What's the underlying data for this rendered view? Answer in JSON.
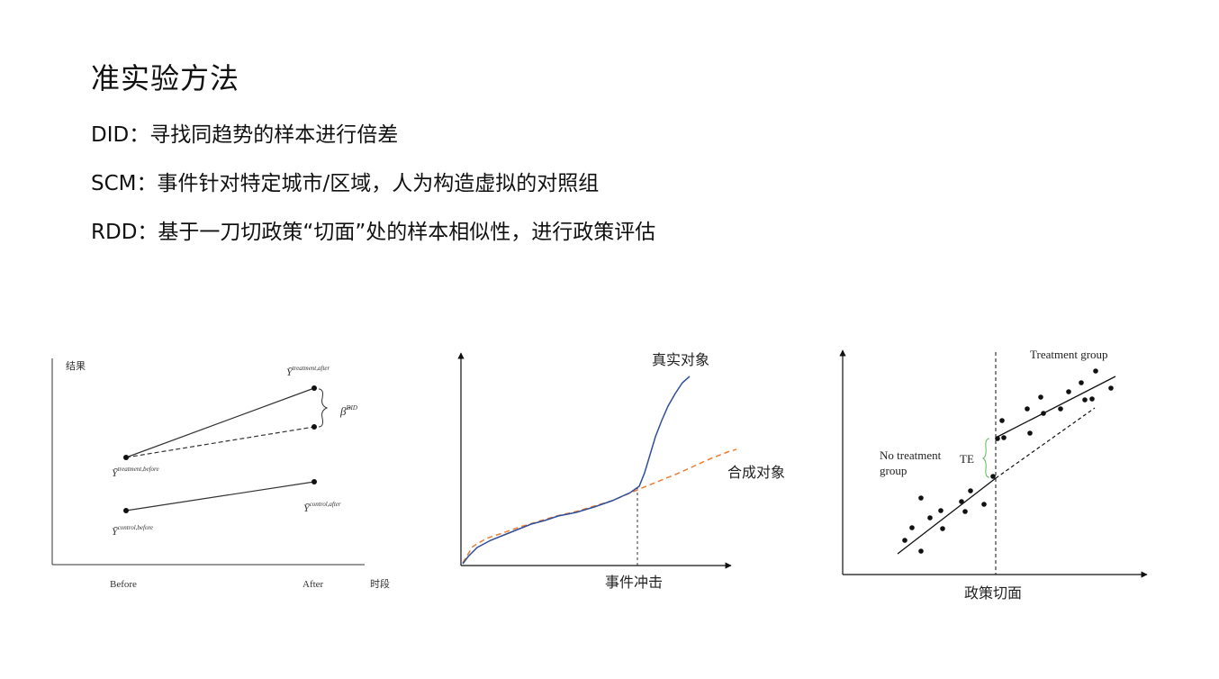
{
  "title": "准实验方法",
  "bullets": [
    {
      "label": "DID：",
      "text": "寻找同趋势的样本进行倍差"
    },
    {
      "label": "SCM：",
      "text": "事件针对特定城市/区域，人为构造虚拟的对照组"
    },
    {
      "label": "RDD：",
      "text": "基于一刀切政策“切面”处的样本相似性，进行政策评估"
    }
  ],
  "did": {
    "ylabel": "结果",
    "xlabel": "时段",
    "ticks": [
      "Before",
      "After"
    ],
    "y_treatment_after": "treatment,after",
    "y_treatment_before": "treatment,before",
    "y_control_after": "control,after",
    "y_control_before": "control,before",
    "beta": "DID"
  },
  "scm": {
    "real_label": "真实对象",
    "synthetic_label": "合成对象",
    "event_label": "事件冲击",
    "colors": {
      "real": "#2f4f9a",
      "synthetic": "#ed7d31"
    }
  },
  "rdd": {
    "treatment_label": "Treatment group",
    "no_treatment_line1": "No treatment",
    "no_treatment_line2": "group",
    "te_label": "TE",
    "xlabel": "政策切面",
    "colors": {
      "te_brace": "#5cb85c"
    }
  }
}
